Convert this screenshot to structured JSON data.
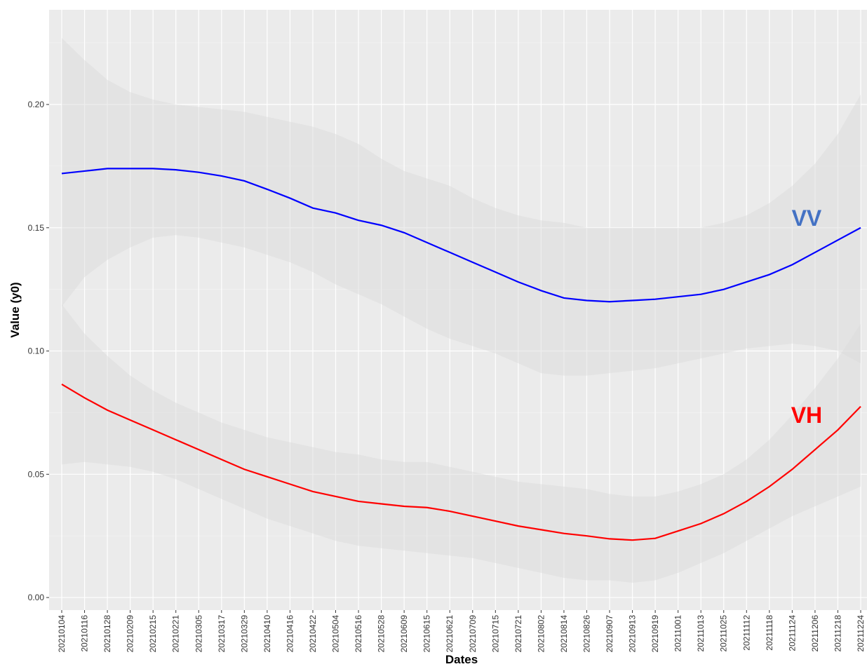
{
  "chart_data": {
    "type": "line",
    "x_label": "Dates",
    "y_label": "Value (y0)",
    "categories": [
      "20210104",
      "20210116",
      "20210128",
      "20210209",
      "20210215",
      "20210221",
      "20210305",
      "20210317",
      "20210329",
      "20210410",
      "20210416",
      "20210422",
      "20210504",
      "20210516",
      "20210528",
      "20210609",
      "20210615",
      "20210621",
      "20210709",
      "20210715",
      "20210721",
      "20210802",
      "20210814",
      "20210826",
      "20210907",
      "20210913",
      "20210919",
      "20211001",
      "20211013",
      "20211025",
      "20211112",
      "20211118",
      "20211124",
      "20211206",
      "20211218",
      "20211224"
    ],
    "series": [
      {
        "name": "VV",
        "color": "#0000ff",
        "label_color": "#4472c4",
        "values": [
          0.172,
          0.173,
          0.174,
          0.174,
          0.174,
          0.1735,
          0.1725,
          0.171,
          0.169,
          0.1656,
          0.162,
          0.158,
          0.156,
          0.153,
          0.151,
          0.148,
          0.144,
          0.14,
          0.136,
          0.132,
          0.128,
          0.1245,
          0.1215,
          0.1205,
          0.12,
          0.1205,
          0.121,
          0.122,
          0.123,
          0.125,
          0.128,
          0.131,
          0.135,
          0.14,
          0.145,
          0.15
        ],
        "upper": [
          0.227,
          0.218,
          0.21,
          0.205,
          0.202,
          0.2,
          0.199,
          0.198,
          0.197,
          0.195,
          0.193,
          0.191,
          0.188,
          0.184,
          0.178,
          0.173,
          0.17,
          0.167,
          0.162,
          0.158,
          0.155,
          0.153,
          0.152,
          0.15,
          0.15,
          0.15,
          0.15,
          0.15,
          0.15,
          0.152,
          0.155,
          0.16,
          0.167,
          0.176,
          0.188,
          0.204
        ],
        "lower": [
          0.118,
          0.13,
          0.137,
          0.142,
          0.146,
          0.147,
          0.146,
          0.144,
          0.142,
          0.139,
          0.136,
          0.132,
          0.127,
          0.123,
          0.119,
          0.114,
          0.109,
          0.105,
          0.102,
          0.099,
          0.095,
          0.091,
          0.09,
          0.09,
          0.091,
          0.092,
          0.093,
          0.095,
          0.097,
          0.099,
          0.101,
          0.102,
          0.103,
          0.102,
          0.1,
          0.095
        ]
      },
      {
        "name": "VH",
        "color": "#ff0000",
        "label_color": "#ff0000",
        "values": [
          0.0865,
          0.081,
          0.076,
          0.072,
          0.068,
          0.064,
          0.06,
          0.056,
          0.052,
          0.049,
          0.046,
          0.043,
          0.041,
          0.039,
          0.038,
          0.037,
          0.0365,
          0.035,
          0.033,
          0.031,
          0.029,
          0.0275,
          0.026,
          0.025,
          0.0238,
          0.0233,
          0.024,
          0.027,
          0.03,
          0.034,
          0.039,
          0.045,
          0.052,
          0.06,
          0.068,
          0.0775
        ],
        "upper": [
          0.119,
          0.107,
          0.098,
          0.09,
          0.084,
          0.079,
          0.075,
          0.071,
          0.068,
          0.065,
          0.063,
          0.061,
          0.059,
          0.058,
          0.056,
          0.055,
          0.055,
          0.053,
          0.051,
          0.049,
          0.047,
          0.046,
          0.045,
          0.044,
          0.042,
          0.041,
          0.041,
          0.043,
          0.046,
          0.05,
          0.056,
          0.064,
          0.074,
          0.085,
          0.097,
          0.111
        ],
        "lower": [
          0.054,
          0.055,
          0.054,
          0.053,
          0.051,
          0.048,
          0.044,
          0.04,
          0.036,
          0.032,
          0.029,
          0.026,
          0.023,
          0.021,
          0.02,
          0.019,
          0.018,
          0.017,
          0.016,
          0.014,
          0.012,
          0.01,
          0.008,
          0.007,
          0.007,
          0.006,
          0.007,
          0.01,
          0.014,
          0.018,
          0.023,
          0.028,
          0.033,
          0.037,
          0.041,
          0.045
        ]
      }
    ],
    "ylim": [
      -0.0051,
      0.2384
    ],
    "yticks": [
      {
        "value": 0,
        "label": "0.00"
      },
      {
        "value": 0.05,
        "label": "0.05"
      },
      {
        "value": 0.1,
        "label": "0.10"
      },
      {
        "value": 0.15,
        "label": "0.15"
      },
      {
        "value": 0.2,
        "label": "0.20"
      }
    ],
    "grid": true,
    "band_color": "#d9d9d9"
  }
}
